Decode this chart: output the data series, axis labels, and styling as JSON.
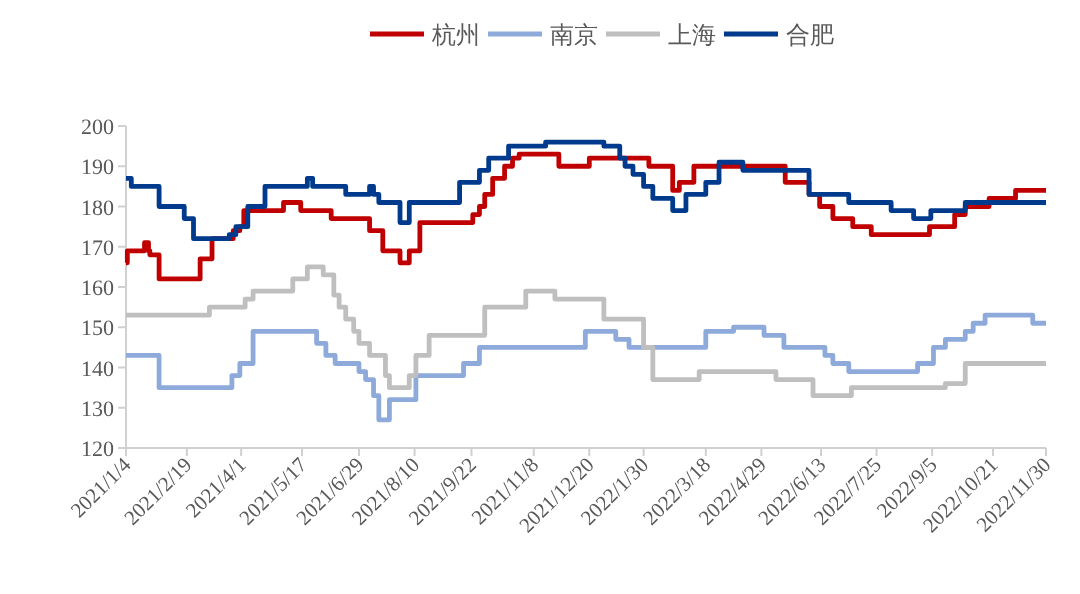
{
  "chart_data": {
    "type": "step",
    "legend": "top",
    "grid": false,
    "ylim": [
      120,
      200
    ],
    "yticks": [
      120,
      130,
      140,
      150,
      160,
      170,
      180,
      190,
      200
    ],
    "xlim": [
      "2021-01-04",
      "2022-11-30"
    ],
    "xticks": [
      {
        "value": "2021-01-04",
        "label": "2021/1/4"
      },
      {
        "value": "2021-02-19",
        "label": "2021/2/19"
      },
      {
        "value": "2021-04-01",
        "label": "2021/4/1"
      },
      {
        "value": "2021-05-17",
        "label": "2021/5/17"
      },
      {
        "value": "2021-06-29",
        "label": "2021/6/29"
      },
      {
        "value": "2021-08-10",
        "label": "2021/8/10"
      },
      {
        "value": "2021-09-22",
        "label": "2021/9/22"
      },
      {
        "value": "2021-11-08",
        "label": "2021/11/8"
      },
      {
        "value": "2021-12-20",
        "label": "2021/12/20"
      },
      {
        "value": "2022-01-30",
        "label": "2022/1/30"
      },
      {
        "value": "2022-03-18",
        "label": "2022/3/18"
      },
      {
        "value": "2022-04-29",
        "label": "2022/4/29"
      },
      {
        "value": "2022-06-13",
        "label": "2022/6/13"
      },
      {
        "value": "2022-07-25",
        "label": "2022/7/25"
      },
      {
        "value": "2022-09-05",
        "label": "2022/9/5"
      },
      {
        "value": "2022-10-21",
        "label": "2022/10/21"
      },
      {
        "value": "2022-11-30",
        "label": "2022/11/30"
      }
    ],
    "series": [
      {
        "name": "杭州",
        "color": "#c00000",
        "x": [
          "2021-01-04",
          "2021-01-05",
          "2021-01-18",
          "2021-01-21",
          "2021-01-22",
          "2021-01-29",
          "2021-03-01",
          "2021-03-10",
          "2021-03-26",
          "2021-03-31",
          "2021-04-03",
          "2021-05-03",
          "2021-05-16",
          "2021-06-08",
          "2021-07-07",
          "2021-07-17",
          "2021-07-30",
          "2021-08-06",
          "2021-08-14",
          "2021-09-23",
          "2021-09-28",
          "2021-10-02",
          "2021-10-08",
          "2021-10-17",
          "2021-10-23",
          "2021-10-28",
          "2021-11-27",
          "2021-12-20",
          "2022-02-03",
          "2022-02-21",
          "2022-02-26",
          "2022-03-09",
          "2022-05-17",
          "2022-06-04",
          "2022-06-12",
          "2022-06-22",
          "2022-07-07",
          "2022-07-21",
          "2022-09-03",
          "2022-09-22",
          "2022-09-30",
          "2022-10-18",
          "2022-11-07",
          "2022-11-30"
        ],
        "values": [
          166,
          169,
          171,
          169,
          168,
          162,
          167,
          172,
          174,
          175,
          179,
          181,
          179,
          177,
          174,
          169,
          166,
          169,
          176,
          178,
          180,
          183,
          187,
          190,
          192,
          193,
          190,
          192,
          190,
          184,
          186,
          190,
          186,
          183,
          180,
          177,
          175,
          173,
          175,
          178,
          180,
          182,
          184,
          184
        ]
      },
      {
        "name": "南京",
        "color": "#8eaadb",
        "x": [
          "2021-01-04",
          "2021-01-29",
          "2021-03-25",
          "2021-03-31",
          "2021-04-10",
          "2021-05-28",
          "2021-06-04",
          "2021-06-11",
          "2021-06-29",
          "2021-07-04",
          "2021-07-10",
          "2021-07-14",
          "2021-07-22",
          "2021-08-11",
          "2021-09-16",
          "2021-09-28",
          "2021-12-17",
          "2022-01-09",
          "2022-01-19",
          "2022-03-18",
          "2022-04-08",
          "2022-05-01",
          "2022-05-16",
          "2022-06-16",
          "2022-06-22",
          "2022-07-04",
          "2022-08-25",
          "2022-09-06",
          "2022-09-15",
          "2022-09-30",
          "2022-10-06",
          "2022-10-15",
          "2022-11-20",
          "2022-11-30"
        ],
        "values": [
          143,
          135,
          138,
          141,
          149,
          146,
          143,
          141,
          139,
          137,
          133,
          127,
          132,
          138,
          141,
          145,
          149,
          147,
          145,
          149,
          150,
          148,
          145,
          143,
          141,
          139,
          141,
          145,
          147,
          149,
          151,
          153,
          151,
          151
        ]
      },
      {
        "name": "上海",
        "color": "#bfbfbf",
        "x": [
          "2021-01-04",
          "2021-03-08",
          "2021-04-04",
          "2021-04-10",
          "2021-05-10",
          "2021-05-21",
          "2021-06-02",
          "2021-06-10",
          "2021-06-14",
          "2021-06-19",
          "2021-06-25",
          "2021-06-29",
          "2021-07-07",
          "2021-07-19",
          "2021-07-22",
          "2021-08-06",
          "2021-08-11",
          "2021-08-21",
          "2021-10-02",
          "2021-11-02",
          "2021-11-24",
          "2021-12-31",
          "2022-01-30",
          "2022-02-06",
          "2022-03-13",
          "2022-05-10",
          "2022-06-07",
          "2022-07-06",
          "2022-09-15",
          "2022-09-30",
          "2022-11-30"
        ],
        "values": [
          153,
          155,
          157,
          159,
          162,
          165,
          163,
          158,
          155,
          152,
          149,
          146,
          143,
          138,
          135,
          138,
          143,
          148,
          155,
          159,
          157,
          152,
          145,
          137,
          139,
          137,
          133,
          135,
          136,
          141,
          141
        ]
      },
      {
        "name": "合肥",
        "color": "#003a8c",
        "x": [
          "2021-01-04",
          "2021-01-08",
          "2021-01-29",
          "2021-02-17",
          "2021-02-24",
          "2021-03-23",
          "2021-03-28",
          "2021-04-06",
          "2021-04-19",
          "2021-05-21",
          "2021-05-25",
          "2021-06-19",
          "2021-07-07",
          "2021-07-10",
          "2021-07-14",
          "2021-07-30",
          "2021-08-06",
          "2021-09-13",
          "2021-09-28",
          "2021-10-05",
          "2021-10-20",
          "2021-11-17",
          "2021-12-31",
          "2022-01-12",
          "2022-01-16",
          "2022-01-22",
          "2022-01-30",
          "2022-02-06",
          "2022-02-21",
          "2022-03-03",
          "2022-03-18",
          "2022-03-28",
          "2022-04-15",
          "2022-06-04",
          "2022-07-04",
          "2022-08-05",
          "2022-08-22",
          "2022-09-04",
          "2022-09-30",
          "2022-11-30"
        ],
        "values": [
          187,
          185,
          180,
          177,
          172,
          173,
          175,
          180,
          185,
          187,
          185,
          183,
          185,
          183,
          181,
          176,
          181,
          186,
          189,
          192,
          195,
          196,
          195,
          192,
          190,
          188,
          185,
          182,
          179,
          183,
          186,
          191,
          189,
          183,
          181,
          179,
          177,
          179,
          181,
          181
        ]
      }
    ]
  }
}
